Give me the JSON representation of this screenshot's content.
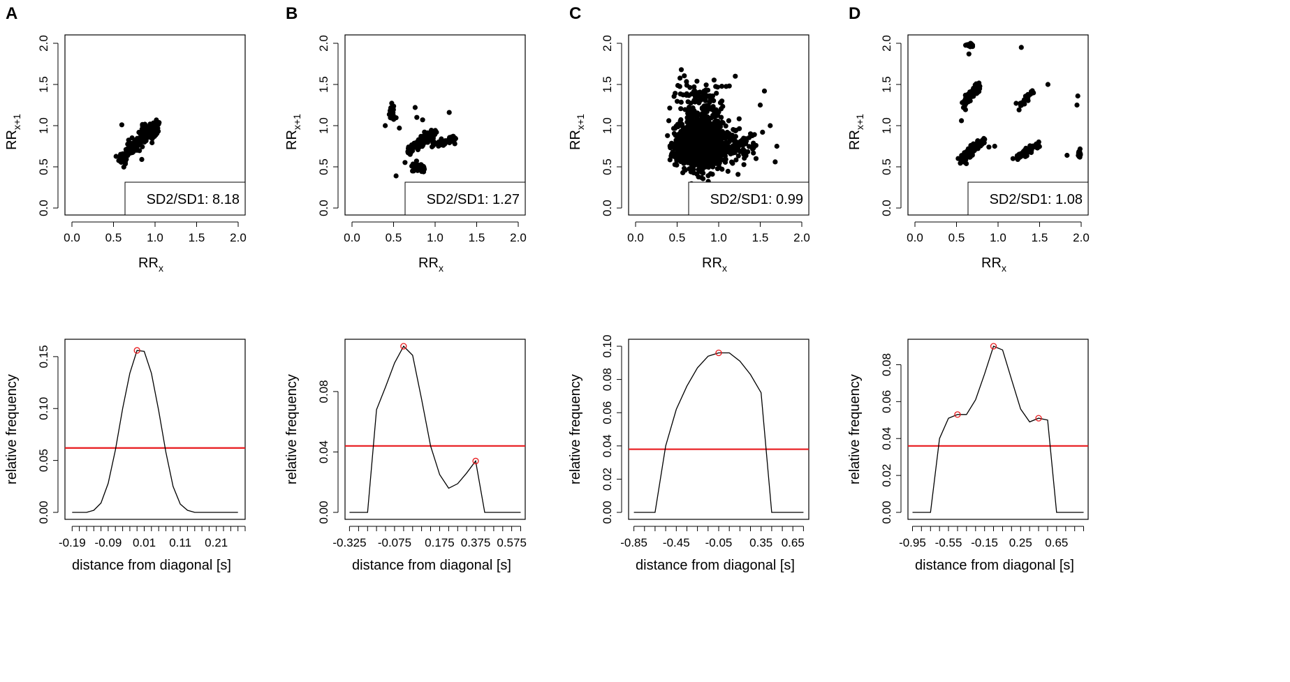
{
  "figure": {
    "panel_labels": [
      "A",
      "B",
      "C",
      "D"
    ]
  },
  "chart_data": [
    {
      "type": "scatter",
      "panel": "A",
      "xlabel": "RR",
      "xlabel_sub": "x",
      "ylabel": "RR",
      "ylabel_sub": "x+1",
      "xlim": [
        0,
        2
      ],
      "ylim": [
        0,
        2
      ],
      "ticks": [
        0.0,
        0.5,
        1.0,
        1.5,
        2.0
      ],
      "tick_labels": [
        "0.0",
        "0.5",
        "1.0",
        "1.5",
        "2.0"
      ],
      "legend": "SD2/SD1: 8.18",
      "legend_position": "bottom-right",
      "clusters": [
        {
          "kind": "line",
          "x0": 0.58,
          "y0": 0.59,
          "x1": 1.02,
          "y1": 1.01,
          "spread": 0.035,
          "n": 260
        },
        {
          "kind": "blob",
          "cx": 0.92,
          "cy": 0.93,
          "rx": 0.08,
          "ry": 0.08,
          "n": 60
        }
      ],
      "outliers": [
        [
          0.6,
          1.01
        ],
        [
          0.84,
          0.59
        ]
      ]
    },
    {
      "type": "scatter",
      "panel": "B",
      "xlabel": "RR",
      "xlabel_sub": "x",
      "ylabel": "RR",
      "ylabel_sub": "x+1",
      "xlim": [
        0,
        2
      ],
      "ylim": [
        0,
        2
      ],
      "ticks": [
        0.0,
        0.5,
        1.0,
        1.5,
        2.0
      ],
      "tick_labels": [
        "0.0",
        "0.5",
        "1.0",
        "1.5",
        "2.0"
      ],
      "legend": "SD2/SD1: 1.27",
      "legend_position": "bottom-right",
      "clusters": [
        {
          "kind": "blob",
          "cx": 0.48,
          "cy": 1.15,
          "rx": 0.03,
          "ry": 0.08,
          "n": 28
        },
        {
          "kind": "line",
          "x0": 0.68,
          "y0": 0.69,
          "x1": 1.0,
          "y1": 0.92,
          "spread": 0.03,
          "n": 130
        },
        {
          "kind": "line",
          "x0": 0.95,
          "y0": 0.76,
          "x1": 1.25,
          "y1": 0.84,
          "spread": 0.025,
          "n": 40
        },
        {
          "kind": "blob",
          "cx": 0.8,
          "cy": 0.5,
          "rx": 0.07,
          "ry": 0.04,
          "n": 30
        }
      ],
      "outliers": [
        [
          0.4,
          1.0
        ],
        [
          0.53,
          0.39
        ],
        [
          0.76,
          1.22
        ],
        [
          1.17,
          1.16
        ],
        [
          0.85,
          1.07
        ],
        [
          0.96,
          0.82
        ],
        [
          0.78,
          1.1
        ],
        [
          0.57,
          0.97
        ]
      ]
    },
    {
      "type": "scatter",
      "panel": "C",
      "xlabel": "RR",
      "xlabel_sub": "x",
      "ylabel": "RR",
      "ylabel_sub": "x+1",
      "xlim": [
        0,
        2
      ],
      "ylim": [
        0,
        2
      ],
      "ticks": [
        0.0,
        0.5,
        1.0,
        1.5,
        2.0
      ],
      "tick_labels": [
        "0.0",
        "0.5",
        "1.0",
        "1.5",
        "2.0"
      ],
      "legend": "SD2/SD1: 0.99",
      "legend_position": "bottom-right",
      "clusters": [
        {
          "kind": "blob",
          "cx": 0.78,
          "cy": 0.82,
          "rx": 0.22,
          "ry": 0.28,
          "n": 900
        },
        {
          "kind": "blob",
          "cx": 0.7,
          "cy": 0.68,
          "rx": 0.18,
          "ry": 0.12,
          "n": 400
        },
        {
          "kind": "blob",
          "cx": 1.1,
          "cy": 0.75,
          "rx": 0.3,
          "ry": 0.2,
          "n": 180
        },
        {
          "kind": "blob",
          "cx": 0.8,
          "cy": 1.35,
          "rx": 0.25,
          "ry": 0.2,
          "n": 90
        }
      ],
      "outliers": [
        [
          1.55,
          1.42
        ],
        [
          1.68,
          0.56
        ],
        [
          1.62,
          1.0
        ],
        [
          1.7,
          0.75
        ],
        [
          0.55,
          1.68
        ],
        [
          1.2,
          1.6
        ],
        [
          1.45,
          0.6
        ],
        [
          1.5,
          1.25
        ]
      ]
    },
    {
      "type": "scatter",
      "panel": "D",
      "xlabel": "RR",
      "xlabel_sub": "x",
      "ylabel": "RR",
      "ylabel_sub": "x+1",
      "xlim": [
        0,
        2
      ],
      "ylim": [
        0,
        2
      ],
      "ticks": [
        0.0,
        0.5,
        1.0,
        1.5,
        2.0
      ],
      "tick_labels": [
        "0.0",
        "0.5",
        "1.0",
        "1.5",
        "2.0"
      ],
      "legend": "SD2/SD1: 1.08",
      "legend_position": "bottom-right",
      "clusters": [
        {
          "kind": "blob",
          "cx": 0.66,
          "cy": 1.98,
          "rx": 0.04,
          "ry": 0.02,
          "n": 20
        },
        {
          "kind": "line",
          "x0": 0.6,
          "y0": 1.27,
          "x1": 0.78,
          "y1": 1.52,
          "spread": 0.03,
          "n": 70
        },
        {
          "kind": "line",
          "x0": 0.56,
          "y0": 0.58,
          "x1": 0.82,
          "y1": 0.82,
          "spread": 0.03,
          "n": 150
        },
        {
          "kind": "line",
          "x0": 1.24,
          "y0": 1.22,
          "x1": 1.42,
          "y1": 1.42,
          "spread": 0.025,
          "n": 30
        },
        {
          "kind": "line",
          "x0": 1.22,
          "y0": 0.6,
          "x1": 1.5,
          "y1": 0.78,
          "spread": 0.02,
          "n": 70
        },
        {
          "kind": "blob",
          "cx": 1.98,
          "cy": 0.65,
          "rx": 0.02,
          "ry": 0.05,
          "n": 14
        }
      ],
      "outliers": [
        [
          0.56,
          1.06
        ],
        [
          0.65,
          1.87
        ],
        [
          0.96,
          0.75
        ],
        [
          1.28,
          1.95
        ],
        [
          1.6,
          1.5
        ],
        [
          1.83,
          0.64
        ],
        [
          1.95,
          1.25
        ],
        [
          1.96,
          1.36
        ],
        [
          1.18,
          0.6
        ],
        [
          0.89,
          0.74
        ]
      ]
    },
    {
      "type": "line",
      "panel": "A",
      "xlabel": "distance from diagonal [s]",
      "ylabel": "relative frequency",
      "xlim": [
        -0.21,
        0.29
      ],
      "ylim": [
        0,
        0.16
      ],
      "xtick_labels": [
        "-0.19",
        "-0.09",
        "0.01",
        "0.11",
        "0.21"
      ],
      "xtick_values": [
        -0.19,
        -0.09,
        0.01,
        0.11,
        0.21
      ],
      "minor_tick_start": -0.19,
      "minor_tick_step": 0.02,
      "yticks": [
        0.0,
        0.05,
        0.1,
        0.15
      ],
      "ytick_labels": [
        "0.00",
        "0.05",
        "0.10",
        "0.15"
      ],
      "threshold": 0.062,
      "x": [
        -0.19,
        -0.17,
        -0.15,
        -0.13,
        -0.11,
        -0.09,
        -0.07,
        -0.05,
        -0.03,
        -0.01,
        0.01,
        0.03,
        0.05,
        0.07,
        0.09,
        0.11,
        0.13,
        0.15,
        0.17,
        0.19,
        0.21,
        0.23,
        0.25,
        0.27
      ],
      "values": [
        0.0,
        0.0,
        0.0,
        0.002,
        0.009,
        0.028,
        0.06,
        0.1,
        0.134,
        0.156,
        0.155,
        0.134,
        0.098,
        0.058,
        0.025,
        0.008,
        0.002,
        0.0,
        0.0,
        0.0,
        0.0,
        0.0,
        0.0,
        0.0
      ],
      "peaks": [
        [
          -0.01,
          0.156
        ]
      ]
    },
    {
      "type": "line",
      "panel": "B",
      "xlabel": "distance from diagonal [s]",
      "ylabel": "relative frequency",
      "xlim": [
        -0.35,
        0.65
      ],
      "ylim": [
        0,
        0.11
      ],
      "xtick_labels": [
        "-0.325",
        "-0.075",
        "0.175",
        "0.375",
        "0.575"
      ],
      "xtick_values": [
        -0.325,
        -0.075,
        0.175,
        0.375,
        0.575
      ],
      "minor_tick_start": -0.325,
      "minor_tick_step": 0.05,
      "yticks": [
        0.0,
        0.04,
        0.08
      ],
      "ytick_labels": [
        "0.00",
        "0.04",
        "0.08"
      ],
      "threshold": 0.044,
      "x": [
        -0.325,
        -0.275,
        -0.225,
        -0.175,
        -0.125,
        -0.075,
        -0.025,
        0.025,
        0.075,
        0.125,
        0.175,
        0.225,
        0.275,
        0.325,
        0.375,
        0.425,
        0.475,
        0.525,
        0.575,
        0.625
      ],
      "values": [
        0.0,
        0.0,
        0.0,
        0.068,
        0.083,
        0.099,
        0.11,
        0.104,
        0.075,
        0.044,
        0.025,
        0.016,
        0.019,
        0.026,
        0.034,
        0.0,
        0.0,
        0.0,
        0.0,
        0.0
      ],
      "peaks": [
        [
          -0.025,
          0.11
        ],
        [
          0.375,
          0.034
        ]
      ]
    },
    {
      "type": "line",
      "panel": "C",
      "xlabel": "distance from diagonal [s]",
      "ylabel": "relative frequency",
      "xlim": [
        -0.9,
        0.8
      ],
      "ylim": [
        0,
        0.1
      ],
      "xtick_labels": [
        "-0.85",
        "-0.45",
        "-0.05",
        "0.35",
        "0.65"
      ],
      "xtick_values": [
        -0.85,
        -0.45,
        -0.05,
        0.35,
        0.65
      ],
      "minor_tick_start": -0.85,
      "minor_tick_step": 0.1,
      "yticks": [
        0.0,
        0.02,
        0.04,
        0.06,
        0.08,
        0.1
      ],
      "ytick_labels": [
        "0.00",
        "0.02",
        "0.04",
        "0.06",
        "0.08",
        "0.10"
      ],
      "threshold": 0.038,
      "x": [
        -0.85,
        -0.75,
        -0.65,
        -0.55,
        -0.45,
        -0.35,
        -0.25,
        -0.15,
        -0.05,
        0.05,
        0.15,
        0.25,
        0.35,
        0.45,
        0.55,
        0.65,
        0.75
      ],
      "values": [
        0.0,
        0.0,
        0.0,
        0.04,
        0.062,
        0.076,
        0.087,
        0.094,
        0.096,
        0.096,
        0.091,
        0.083,
        0.072,
        0.0,
        0.0,
        0.0,
        0.0
      ],
      "peaks": [
        [
          -0.05,
          0.096
        ]
      ]
    },
    {
      "type": "line",
      "panel": "D",
      "xlabel": "distance from diagonal [s]",
      "ylabel": "relative frequency",
      "xlim": [
        -1.0,
        1.0
      ],
      "ylim": [
        0,
        0.09
      ],
      "xtick_labels": [
        "-0.95",
        "-0.55",
        "-0.15",
        "0.25",
        "0.65"
      ],
      "xtick_values": [
        -0.95,
        -0.55,
        -0.15,
        0.25,
        0.65
      ],
      "minor_tick_start": -0.95,
      "minor_tick_step": 0.1,
      "yticks": [
        0.0,
        0.02,
        0.04,
        0.06,
        0.08
      ],
      "ytick_labels": [
        "0.00",
        "0.02",
        "0.04",
        "0.06",
        "0.08"
      ],
      "threshold": 0.036,
      "x": [
        -0.95,
        -0.85,
        -0.75,
        -0.65,
        -0.55,
        -0.45,
        -0.35,
        -0.25,
        -0.15,
        -0.05,
        0.05,
        0.15,
        0.25,
        0.35,
        0.45,
        0.55,
        0.65,
        0.75,
        0.85,
        0.95
      ],
      "values": [
        0.0,
        0.0,
        0.0,
        0.04,
        0.051,
        0.053,
        0.053,
        0.061,
        0.075,
        0.09,
        0.088,
        0.072,
        0.056,
        0.049,
        0.051,
        0.05,
        0.0,
        0.0,
        0.0,
        0.0
      ],
      "peaks": [
        [
          -0.05,
          0.09
        ],
        [
          -0.45,
          0.053
        ],
        [
          0.45,
          0.051
        ]
      ]
    }
  ],
  "colors": {
    "points": "#000000",
    "line": "#000000",
    "threshold": "#e8191c",
    "peak_marker": "#e8191c"
  }
}
